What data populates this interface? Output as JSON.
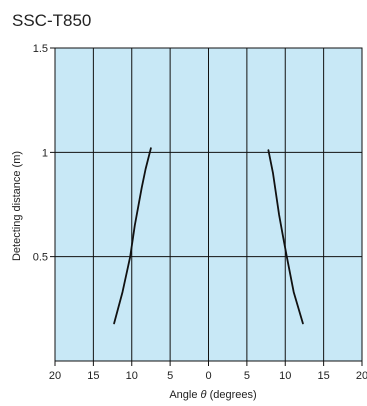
{
  "chart_data": {
    "type": "line",
    "title": "SSC-T850",
    "xlabel": {
      "prefix": "Angle ",
      "symbol": "θ",
      "suffix": " (degrees)"
    },
    "ylabel": "Detecting distance (m)",
    "xlim": [
      -20,
      20
    ],
    "ylim": [
      0,
      1.5
    ],
    "x_tick_values": [
      -20,
      -15,
      -10,
      -5,
      0,
      5,
      10,
      15,
      20
    ],
    "x_tick_labels": [
      "20",
      "15",
      "10",
      "5",
      "0",
      "5",
      "10",
      "15",
      "20"
    ],
    "y_tick_values": [
      0.5,
      1,
      1.5
    ],
    "y_tick_labels": [
      "0.5",
      "1",
      "1.5"
    ],
    "grid": true,
    "background_color": "#c8e8f6",
    "grid_color": "#111111",
    "line_color": "#111111",
    "series": [
      {
        "x": [
          -12.3,
          -11.2,
          -10.2,
          -9.6,
          -8.7,
          -8.2,
          -7.5
        ],
        "y": [
          0.18,
          0.33,
          0.5,
          0.65,
          0.83,
          0.92,
          1.02
        ]
      },
      {
        "x": [
          7.8,
          8.4,
          9.2,
          9.7,
          10.2,
          11.1,
          12.3
        ],
        "y": [
          1.01,
          0.9,
          0.7,
          0.6,
          0.5,
          0.33,
          0.18
        ]
      }
    ]
  }
}
